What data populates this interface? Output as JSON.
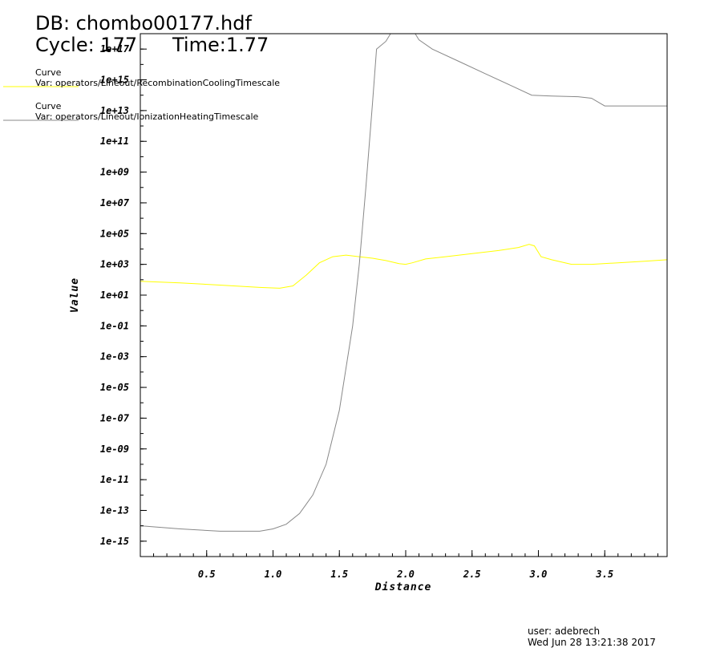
{
  "header": {
    "db": "DB: chombo00177.hdf",
    "cycle": "Cycle: 177",
    "time": "Time:1.77"
  },
  "legend": [
    {
      "title": "Curve",
      "var": "Var: operators/Lineout/RecombinationCoolingTimescale",
      "color": "#ffff00"
    },
    {
      "title": "Curve",
      "var": "Var: operators/Lineout/IonizationHeatingTimescale",
      "color": "#888888"
    }
  ],
  "footer": {
    "user": "user: adebrech",
    "date": "Wed Jun 28 13:21:38 2017"
  },
  "chart_data": {
    "type": "line",
    "xlabel": "Distance",
    "ylabel": "Value",
    "xlim": [
      0.0,
      3.97
    ],
    "ylim_log10": [
      -16,
      18
    ],
    "log_y": true,
    "x_ticks": [
      0.5,
      1.0,
      1.5,
      2.0,
      2.5,
      3.0,
      3.5
    ],
    "x_tick_labels": [
      "0.5",
      "1.0",
      "1.5",
      "2.0",
      "2.5",
      "3.0",
      "3.5"
    ],
    "y_ticks_log10": [
      -15,
      -13,
      -11,
      -9,
      -7,
      -5,
      -3,
      -1,
      1,
      3,
      5,
      7,
      9,
      11,
      13,
      15,
      17
    ],
    "y_tick_labels": [
      "1e-15",
      "1e-13",
      "1e-11",
      "1e-09",
      "1e-07",
      "1e-05",
      "1e-03",
      "1e-01",
      "1e+01",
      "1e+03",
      "1e+05",
      "1e+07",
      "1e+09",
      "1e+11",
      "1e+13",
      "1e+15",
      "1e+17"
    ],
    "series": [
      {
        "name": "operators/Lineout/RecombinationCoolingTimescale",
        "color": "#ffff00",
        "x": [
          0.0,
          0.3,
          0.6,
          0.9,
          1.05,
          1.15,
          1.25,
          1.35,
          1.45,
          1.55,
          1.65,
          1.75,
          1.85,
          1.95,
          2.0,
          2.05,
          2.15,
          2.3,
          2.5,
          2.7,
          2.85,
          2.93,
          2.97,
          3.02,
          3.1,
          3.25,
          3.4,
          3.6,
          3.8,
          3.97
        ],
        "y_log10": [
          1.9,
          1.8,
          1.65,
          1.5,
          1.45,
          1.6,
          2.3,
          3.1,
          3.5,
          3.6,
          3.5,
          3.4,
          3.25,
          3.05,
          3.0,
          3.1,
          3.35,
          3.5,
          3.7,
          3.9,
          4.1,
          4.3,
          4.2,
          3.5,
          3.3,
          3.0,
          3.0,
          3.1,
          3.2,
          3.3
        ]
      },
      {
        "name": "operators/Lineout/IonizationHeatingTimescale",
        "color": "#888888",
        "x": [
          0.0,
          0.3,
          0.6,
          0.9,
          1.0,
          1.1,
          1.2,
          1.3,
          1.4,
          1.5,
          1.6,
          1.65,
          1.7,
          1.75,
          1.78,
          1.85,
          1.9,
          1.95,
          2.0,
          2.05,
          2.1,
          2.2,
          2.4,
          2.6,
          2.8,
          2.95,
          3.1,
          3.3,
          3.4,
          3.5,
          3.6,
          3.8,
          3.97
        ],
        "y_log10": [
          -14.0,
          -14.2,
          -14.35,
          -14.35,
          -14.2,
          -13.9,
          -13.2,
          -12.0,
          -10.0,
          -6.5,
          -1.0,
          3.0,
          8.0,
          13.5,
          17.0,
          17.5,
          18.2,
          18.6,
          18.5,
          18.3,
          17.6,
          17.0,
          16.2,
          15.4,
          14.6,
          14.0,
          13.95,
          13.9,
          13.8,
          13.3,
          13.3,
          13.3,
          13.3
        ]
      }
    ]
  }
}
